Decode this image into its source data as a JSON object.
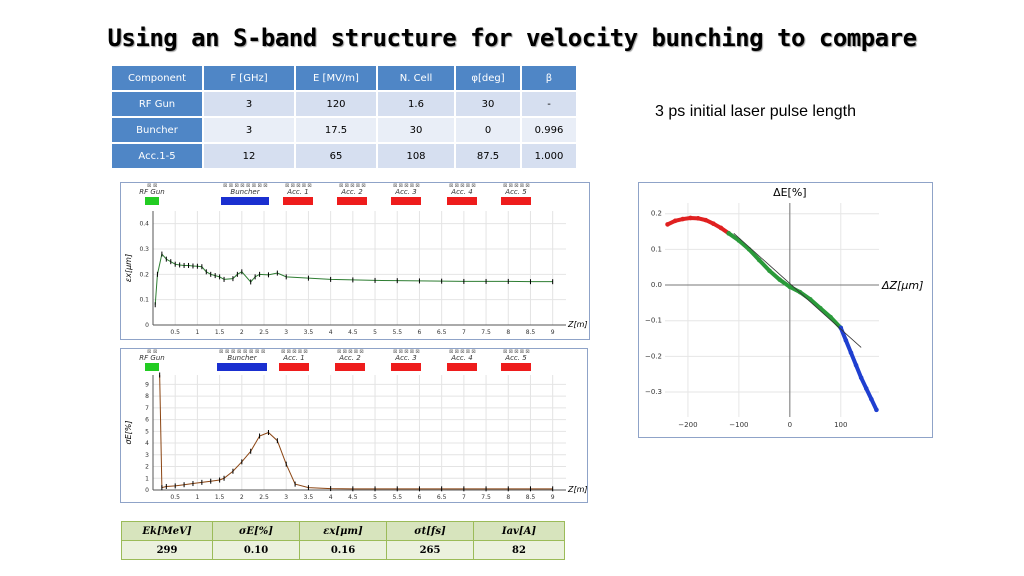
{
  "title": "Using an S-band structure for velocity bunching to compare",
  "param_table": {
    "headers": [
      "Component",
      "F [GHz]",
      "E [MV/m]",
      "N. Cell",
      "φ[deg]",
      "β"
    ],
    "rows": [
      [
        "RF Gun",
        "3",
        "120",
        "1.6",
        "30",
        "-"
      ],
      [
        "Buncher",
        "3",
        "17.5",
        "30",
        "0",
        "0.996"
      ],
      [
        "Acc.1-5",
        "12",
        "65",
        "108",
        "87.5",
        "1.000"
      ]
    ]
  },
  "note": "3 ps initial laser pulse length",
  "beamline_labels": [
    "RF Gun",
    "Buncher",
    "Acc. 1",
    "Acc. 2",
    "Acc. 3",
    "Acc. 4",
    "Acc. 5"
  ],
  "chart_data": [
    {
      "type": "line",
      "ylabel": "εx[μm]",
      "xlabel": "Z[m]",
      "ylim": [
        0,
        0.45
      ],
      "xlim": [
        0,
        9.3
      ],
      "yticks": [
        "0",
        "0.1",
        "0.2",
        "0.3",
        "0.4"
      ],
      "xticks": [
        "0.5",
        "1",
        "1.5",
        "2",
        "2.5",
        "3",
        "3.5",
        "4",
        "4.5",
        "5",
        "5.5",
        "6",
        "6.5",
        "7",
        "7.5",
        "8",
        "8.5",
        "9"
      ],
      "series": [
        {
          "color": "#2e7d32",
          "x": [
            0.05,
            0.1,
            0.2,
            0.3,
            0.4,
            0.5,
            0.6,
            0.7,
            0.8,
            0.9,
            1.0,
            1.1,
            1.2,
            1.3,
            1.4,
            1.5,
            1.6,
            1.8,
            1.9,
            2.0,
            2.2,
            2.3,
            2.4,
            2.6,
            2.8,
            3.0,
            3.5,
            4.0,
            4.5,
            5.0,
            5.5,
            6.0,
            6.5,
            7.0,
            7.5,
            8.0,
            8.5,
            9.0
          ],
          "values": [
            0.08,
            0.2,
            0.28,
            0.26,
            0.25,
            0.24,
            0.237,
            0.235,
            0.235,
            0.233,
            0.232,
            0.23,
            0.21,
            0.2,
            0.195,
            0.19,
            0.18,
            0.183,
            0.2,
            0.21,
            0.17,
            0.19,
            0.2,
            0.198,
            0.205,
            0.19,
            0.185,
            0.18,
            0.178,
            0.176,
            0.175,
            0.174,
            0.173,
            0.172,
            0.172,
            0.172,
            0.171,
            0.171
          ]
        }
      ]
    },
    {
      "type": "line",
      "ylabel": "σE[%]",
      "xlabel": "Z[m]",
      "ylim": [
        0,
        9.8
      ],
      "xlim": [
        0,
        9.3
      ],
      "yticks": [
        "0",
        "1",
        "2",
        "3",
        "4",
        "5",
        "6",
        "7",
        "8",
        "9"
      ],
      "xticks": [
        "0.5",
        "1",
        "1.5",
        "2",
        "2.5",
        "3",
        "3.5",
        "4",
        "4.5",
        "5",
        "5.5",
        "6",
        "6.5",
        "7",
        "7.5",
        "8",
        "8.5",
        "9"
      ],
      "series": [
        {
          "color": "#8b4513",
          "x": [
            0.15,
            0.2,
            0.3,
            0.5,
            0.7,
            0.9,
            1.1,
            1.3,
            1.5,
            1.6,
            1.8,
            2.0,
            2.2,
            2.4,
            2.6,
            2.8,
            3.0,
            3.2,
            3.5,
            4.0,
            4.5,
            5.0,
            5.5,
            6.0,
            6.5,
            7.0,
            7.5,
            8.0,
            8.5,
            9.0
          ],
          "values": [
            9.8,
            0.2,
            0.3,
            0.35,
            0.45,
            0.55,
            0.65,
            0.75,
            0.85,
            1.0,
            1.6,
            2.4,
            3.3,
            4.6,
            4.9,
            4.2,
            2.2,
            0.5,
            0.2,
            0.12,
            0.1,
            0.1,
            0.1,
            0.1,
            0.1,
            0.1,
            0.1,
            0.1,
            0.1,
            0.1
          ]
        }
      ]
    },
    {
      "type": "scatter",
      "ylabel": "ΔE[%]",
      "xlabel": "ΔZ[μm]",
      "xlim": [
        -245,
        175
      ],
      "ylim": [
        -0.37,
        0.23
      ],
      "yticks": [
        "0.2",
        "0.1",
        "0.0",
        "−0.1",
        "−0.2",
        "−0.3"
      ],
      "xticks": [
        "−200",
        "−100",
        "0",
        "100"
      ],
      "series": [
        {
          "color": "#e02020",
          "x": [
            -240,
            -225,
            -210,
            -195,
            -180,
            -165,
            -150,
            -135,
            -120
          ],
          "values": [
            0.17,
            0.18,
            0.185,
            0.188,
            0.187,
            0.182,
            0.172,
            0.16,
            0.145
          ]
        },
        {
          "color": "#2a9a3a",
          "x": [
            -120,
            -100,
            -80,
            -60,
            -40,
            -20,
            0,
            20,
            40,
            60,
            80,
            100
          ],
          "values": [
            0.145,
            0.125,
            0.1,
            0.07,
            0.04,
            0.015,
            -0.005,
            -0.02,
            -0.04,
            -0.065,
            -0.09,
            -0.12
          ]
        },
        {
          "color": "#1f3fd0",
          "x": [
            100,
            110,
            120,
            130,
            140,
            150,
            160,
            170
          ],
          "values": [
            -0.12,
            -0.155,
            -0.19,
            -0.225,
            -0.26,
            -0.29,
            -0.32,
            -0.35
          ]
        }
      ],
      "fit_line": {
        "x": [
          -110,
          140
        ],
        "values": [
          0.145,
          -0.175
        ]
      }
    }
  ],
  "results_table": {
    "headers": [
      "Ek[MeV]",
      "σE[%]",
      "εx[μm]",
      "σt[fs]",
      "Iav[A]"
    ],
    "values": [
      "299",
      "0.10",
      "0.16",
      "265",
      "82"
    ]
  }
}
